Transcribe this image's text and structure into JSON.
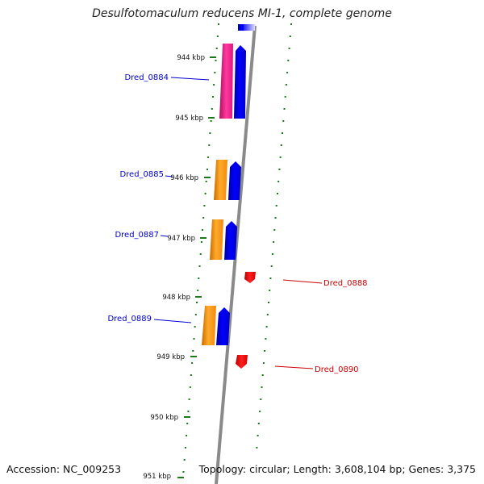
{
  "title": "Desulfotomaculum reducens MI-1, complete genome",
  "footer": {
    "accession": "Accession: NC_009253",
    "topology": "Topology: circular; Length: 3,608,104 bp; Genes: 3,375"
  },
  "colors": {
    "blue_gene": "#0000ee",
    "magenta_gene": "#ee1c8c",
    "orange_gene": "#f7941d",
    "red_gene": "#ee0000",
    "blue_label": "#0000cc",
    "red_label": "#cc0000",
    "tick": "#1a7a1a",
    "backbone": "#8a8a8a"
  },
  "kbp_ticks": [
    "944 kbp",
    "945 kbp",
    "946 kbp",
    "947 kbp",
    "948 kbp",
    "949 kbp",
    "950 kbp",
    "951 kbp"
  ],
  "genes": [
    {
      "label": "Dred_0884",
      "strand": "forward",
      "color": "magenta"
    },
    {
      "label": "Dred_0885",
      "strand": "forward",
      "color": "orange"
    },
    {
      "label": "Dred_0887",
      "strand": "forward",
      "color": "orange"
    },
    {
      "label": "Dred_0888",
      "strand": "reverse",
      "color": "red"
    },
    {
      "label": "Dred_0889",
      "strand": "forward",
      "color": "orange"
    },
    {
      "label": "Dred_0890",
      "strand": "reverse",
      "color": "red"
    }
  ]
}
